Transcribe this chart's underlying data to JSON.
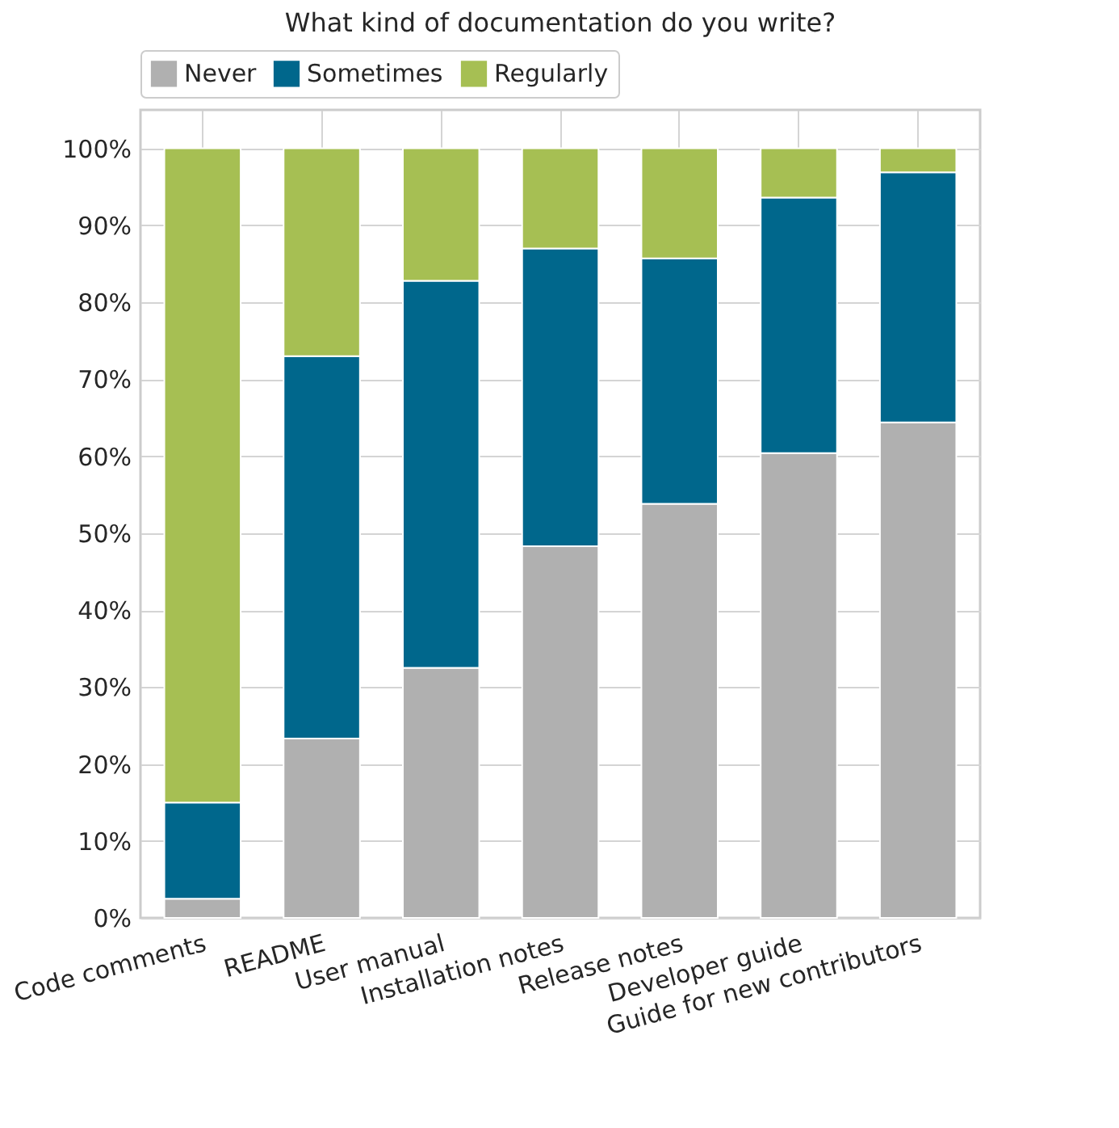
{
  "chart_data": {
    "type": "bar",
    "title": "What kind of documentation do you write?",
    "stacked": true,
    "grid": true,
    "legend": "top",
    "categories": [
      "Code comments",
      "README",
      "User manual",
      "Installation notes",
      "Release notes",
      "Developer guide",
      "Guide for new contributors"
    ],
    "series": [
      {
        "name": "Never",
        "color": "#b0b0b0",
        "values": [
          2.5,
          23.3,
          32.5,
          48.3,
          53.8,
          60.4,
          64.4
        ]
      },
      {
        "name": "Sometimes",
        "color": "#00678c",
        "values": [
          12.5,
          49.7,
          50.3,
          38.7,
          31.9,
          33.2,
          32.5
        ]
      },
      {
        "name": "Regularly",
        "color": "#a6bf53",
        "values": [
          85,
          27,
          17.2,
          13,
          14.3,
          6.4,
          3.1
        ]
      }
    ],
    "ylim": [
      0,
      105
    ],
    "yticks": [
      {
        "value": 0,
        "label": "0%"
      },
      {
        "value": 10,
        "label": "10%"
      },
      {
        "value": 20,
        "label": "20%"
      },
      {
        "value": 30,
        "label": "30%"
      },
      {
        "value": 40,
        "label": "40%"
      },
      {
        "value": 50,
        "label": "50%"
      },
      {
        "value": 60,
        "label": "60%"
      },
      {
        "value": 70,
        "label": "70%"
      },
      {
        "value": 80,
        "label": "80%"
      },
      {
        "value": 90,
        "label": "90%"
      },
      {
        "value": 100,
        "label": "100%"
      }
    ]
  }
}
